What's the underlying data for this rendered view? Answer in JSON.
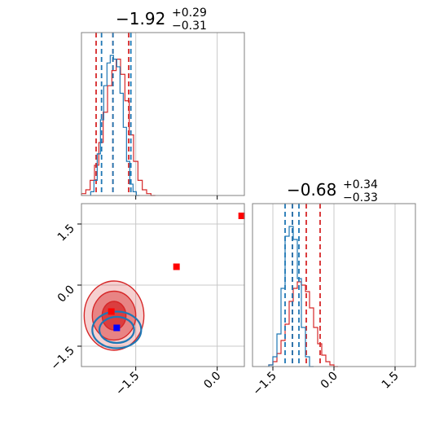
{
  "colors": {
    "red": "#d62728",
    "blue": "#1f77b4",
    "marker_blue": "#0000ff",
    "marker_red": "#ff0000",
    "grid": "#c8c8c8",
    "frame": "#808080"
  },
  "chart_data": {
    "type": "scatter",
    "layout": "corner",
    "panels": [
      {
        "id": "hist-1",
        "type": "histogram",
        "title": {
          "main": "−1.92",
          "plus": "+0.29",
          "minus": "−0.31"
        },
        "xlim": [
          -2.5,
          0.5
        ],
        "series": [
          {
            "color": "red",
            "bins_x": [
              -2.46,
              -2.38,
              -2.3,
              -2.22,
              -2.14,
              -2.06,
              -1.98,
              -1.9,
              -1.82,
              -1.74,
              -1.66,
              -1.58,
              -1.5,
              -1.42,
              -1.34,
              -1.26,
              -1.18
            ],
            "counts": [
              1,
              3,
              8,
              16,
              28,
              44,
              58,
              66,
              72,
              64,
              50,
              32,
              18,
              8,
              3,
              1,
              0
            ],
            "quantiles": [
              -2.23,
              -1.92,
              -1.63
            ]
          },
          {
            "color": "blue",
            "bins_x": [
              -2.3,
              -2.24,
              -2.18,
              -2.12,
              -2.06,
              -2.0,
              -1.94,
              -1.88,
              -1.82,
              -1.76,
              -1.7,
              -1.64,
              -1.58,
              -1.52,
              -1.46
            ],
            "counts": [
              2,
              8,
              22,
              40,
              58,
              70,
              74,
              72,
              68,
              54,
              36,
              18,
              6,
              2,
              0
            ],
            "quantiles": [
              -2.13,
              -1.92,
              -1.59
            ]
          }
        ]
      },
      {
        "id": "contour-2-1",
        "type": "contour",
        "xlim": [
          -2.5,
          0.5
        ],
        "ylim": [
          -2.0,
          2.0
        ],
        "contours": [
          {
            "color": "red",
            "center": [
              -1.9,
              -0.75
            ],
            "levels": [
              {
                "rx": 0.55,
                "ry": 0.85
              },
              {
                "rx": 0.4,
                "ry": 0.6
              },
              {
                "rx": 0.22,
                "ry": 0.35
              }
            ]
          },
          {
            "color": "blue",
            "center": [
              -1.85,
              -1.1
            ],
            "levels": [
              {
                "rx": 0.45,
                "ry": 0.45
              },
              {
                "rx": 0.32,
                "ry": 0.32
              }
            ]
          }
        ],
        "markers": [
          {
            "color": "marker_red",
            "x": -1.95,
            "y": -0.65
          },
          {
            "color": "marker_blue",
            "x": -1.85,
            "y": -1.05
          },
          {
            "color": "marker_red",
            "x": -0.75,
            "y": 0.45
          },
          {
            "color": "marker_red",
            "x": 0.45,
            "y": 1.7
          }
        ]
      },
      {
        "id": "hist-2",
        "type": "histogram",
        "title": {
          "main": "−0.68",
          "plus": "+0.34",
          "minus": "−0.33"
        },
        "xlim": [
          -2.0,
          2.0
        ],
        "series": [
          {
            "color": "red",
            "bins_x": [
              -1.55,
              -1.45,
              -1.35,
              -1.25,
              -1.15,
              -1.05,
              -0.95,
              -0.85,
              -0.75,
              -0.65,
              -0.55,
              -0.45,
              -0.35,
              -0.25,
              -0.15,
              -0.05,
              0.05
            ],
            "counts": [
              1,
              3,
              8,
              16,
              26,
              40,
              48,
              52,
              50,
              46,
              36,
              24,
              14,
              7,
              3,
              1,
              0
            ],
            "quantiles": [
              -1.02,
              -0.68,
              -0.34
            ]
          },
          {
            "color": "blue",
            "bins_x": [
              -1.55,
              -1.45,
              -1.35,
              -1.25,
              -1.15,
              -1.05,
              -0.95,
              -0.85,
              -0.75,
              -0.65,
              -0.55
            ],
            "counts": [
              1,
              6,
              20,
              48,
              80,
              86,
              78,
              54,
              24,
              6,
              0
            ],
            "quantiles": [
              -1.2,
              -1.02,
              -0.86
            ]
          }
        ]
      }
    ],
    "ticks": {
      "contour_x": [
        -1.5,
        0.0
      ],
      "contour_y": [
        -1.5,
        0.0,
        1.5
      ],
      "hist2_x": [
        -1.5,
        0.0,
        1.5
      ],
      "labels": {
        "-1.5": "−1.5",
        "0.0": "0.0",
        "1.5": "1.5"
      }
    },
    "grid": true
  }
}
